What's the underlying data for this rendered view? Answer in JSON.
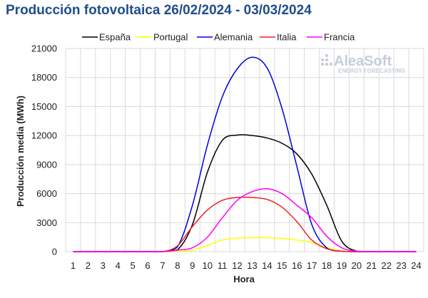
{
  "header": {
    "title": "Producción fotovoltaica 26/02/2024 - 03/03/2024"
  },
  "logo": {
    "name": "AleaSoft",
    "tagline": "ENERGY FORECASTING"
  },
  "chart_data": {
    "type": "line",
    "title": "Producción fotovoltaica 26/02/2024 - 03/03/2024",
    "xlabel": "Hora",
    "ylabel": "Producción media (MWh)",
    "x": [
      1,
      2,
      3,
      4,
      5,
      6,
      7,
      8,
      9,
      10,
      11,
      12,
      13,
      14,
      15,
      16,
      17,
      18,
      19,
      20,
      21,
      22,
      23,
      24
    ],
    "ylim": [
      0,
      21000
    ],
    "yticks": [
      0,
      3000,
      6000,
      9000,
      12000,
      15000,
      18000,
      21000
    ],
    "grid": "horizontal and vertical",
    "legend_position": "top",
    "series": [
      {
        "name": "España",
        "color": "#000000",
        "values": [
          0,
          0,
          0,
          0,
          0,
          0,
          0,
          200,
          2800,
          8200,
          11500,
          12050,
          12000,
          11750,
          11200,
          10100,
          8000,
          4800,
          1100,
          50,
          0,
          0,
          0,
          0
        ]
      },
      {
        "name": "Portugal",
        "color": "#ffff00",
        "values": [
          0,
          0,
          0,
          0,
          0,
          0,
          0,
          0,
          150,
          650,
          1200,
          1400,
          1450,
          1450,
          1350,
          1200,
          950,
          400,
          80,
          0,
          0,
          0,
          0,
          0
        ]
      },
      {
        "name": "Alemania",
        "color": "#0000dd",
        "values": [
          0,
          0,
          0,
          0,
          0,
          0,
          0,
          500,
          4800,
          11000,
          16000,
          18900,
          20100,
          19000,
          14800,
          8800,
          2800,
          400,
          50,
          0,
          0,
          0,
          0,
          0
        ]
      },
      {
        "name": "Italia",
        "color": "#ee2222",
        "values": [
          0,
          0,
          0,
          0,
          0,
          0,
          0,
          600,
          2600,
          4300,
          5300,
          5600,
          5600,
          5400,
          4600,
          3100,
          1200,
          300,
          50,
          0,
          0,
          0,
          0,
          0
        ]
      },
      {
        "name": "Francia",
        "color": "#ff00ff",
        "values": [
          0,
          0,
          0,
          0,
          0,
          0,
          0,
          150,
          400,
          1500,
          3500,
          5300,
          6200,
          6500,
          6000,
          4800,
          3500,
          1600,
          400,
          50,
          0,
          0,
          0,
          0
        ]
      }
    ]
  }
}
